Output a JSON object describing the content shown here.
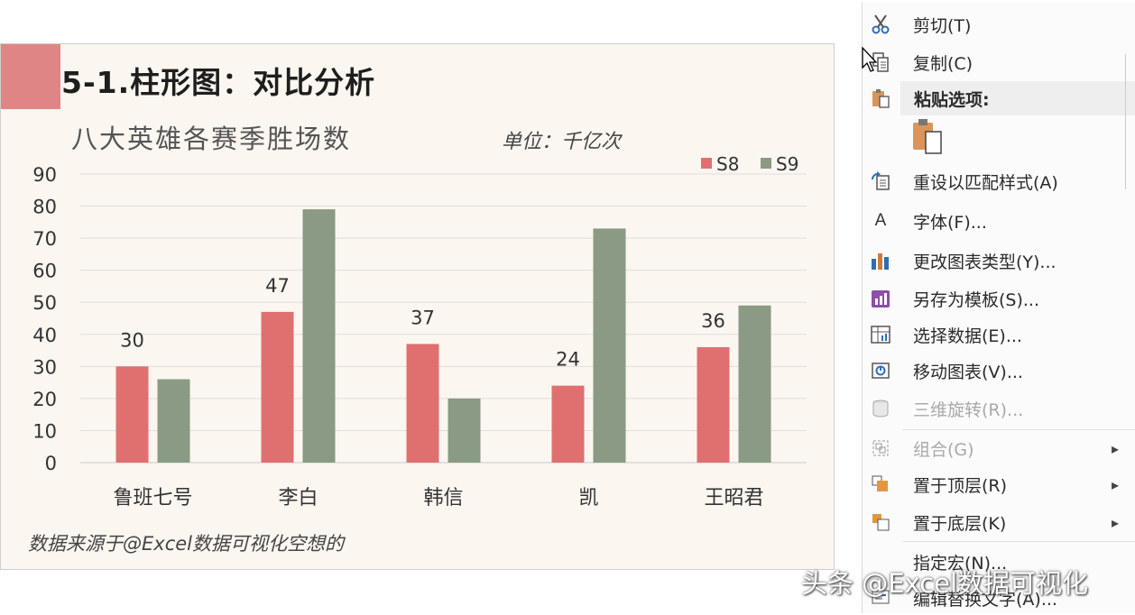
{
  "slide": {
    "title": "5-1.柱形图：对比分析",
    "chart_title": "八大英雄各赛季胜场数",
    "unit_label": "单位：千亿次",
    "source": "数据来源于@Excel数据可视化空想的",
    "accent_color": "#e08585",
    "background_color": "#fbf6f0"
  },
  "chart_data": {
    "type": "bar",
    "categories": [
      "鲁班七号",
      "李白",
      "韩信",
      "凯",
      "王昭君"
    ],
    "series": [
      {
        "name": "S8",
        "values": [
          30,
          47,
          37,
          24,
          36
        ],
        "color": "#e07070"
      },
      {
        "name": "S9",
        "values": [
          26,
          79,
          20,
          73,
          49
        ],
        "color": "#8a9a84"
      }
    ],
    "data_labels": {
      "S8": [
        "30",
        "47",
        "37",
        "24",
        "36"
      ]
    },
    "yticks": [
      "0",
      "10",
      "20",
      "30",
      "40",
      "50",
      "60",
      "70",
      "80",
      "90"
    ],
    "ylim": [
      0,
      90
    ],
    "grid": true,
    "legend_position": "top-right",
    "title": "八大英雄各赛季胜场数"
  },
  "context_menu": {
    "items": [
      {
        "label": "剪切(T)",
        "icon": "scissors-icon",
        "disabled": false
      },
      {
        "label": "复制(C)",
        "icon": "copy-icon",
        "disabled": false
      },
      {
        "label": "粘贴选项:",
        "icon": "paste-icon",
        "disabled": false,
        "header": true
      },
      {
        "label": "重设以匹配样式(A)",
        "icon": "reset-style-icon",
        "disabled": false
      },
      {
        "label": "字体(F)...",
        "icon": "font-icon",
        "disabled": false
      },
      {
        "label": "更改图表类型(Y)...",
        "icon": "chart-type-icon",
        "disabled": false
      },
      {
        "label": "另存为模板(S)...",
        "icon": "save-template-icon",
        "disabled": false
      },
      {
        "label": "选择数据(E)...",
        "icon": "select-data-icon",
        "disabled": false
      },
      {
        "label": "移动图表(V)...",
        "icon": "move-chart-icon",
        "disabled": false
      },
      {
        "label": "三维旋转(R)...",
        "icon": "3d-rotate-icon",
        "disabled": true
      },
      {
        "label": "组合(G)",
        "icon": "group-icon",
        "disabled": true,
        "submenu": true
      },
      {
        "label": "置于顶层(R)",
        "icon": "bring-front-icon",
        "disabled": false,
        "submenu": true
      },
      {
        "label": "置于底层(K)",
        "icon": "send-back-icon",
        "disabled": false,
        "submenu": true
      },
      {
        "label": "指定宏(N)...",
        "icon": "macro-icon",
        "disabled": false
      },
      {
        "label": "编辑替换文字(A)...",
        "icon": "alt-text-icon",
        "disabled": false
      }
    ],
    "font_glyph": "A"
  },
  "watermark": "头条 @Excel数据可视化"
}
